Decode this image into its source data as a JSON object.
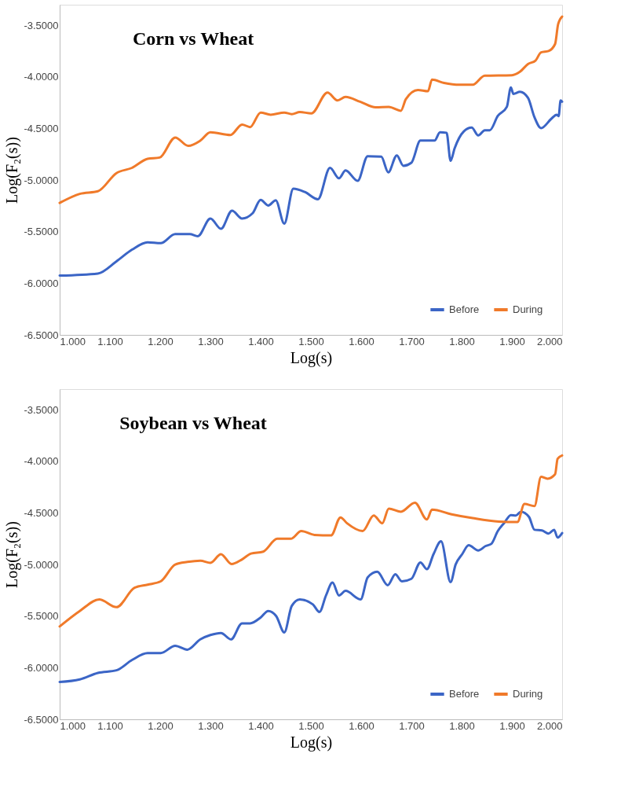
{
  "chart_data": [
    {
      "type": "line",
      "title": "Corn vs Wheat",
      "xlabel": "Log(s)",
      "ylabel": "Log(F₂(s))",
      "legend": "bottom right",
      "grid": false,
      "line_style": "solid",
      "marker": "none",
      "xlim": [
        1.0,
        2.0
      ],
      "ylim": [
        -6.5,
        -3.3
      ],
      "xticks": [
        {
          "value": 1.0,
          "label": "1.000"
        },
        {
          "value": 1.1,
          "label": "1.100"
        },
        {
          "value": 1.2,
          "label": "1.200"
        },
        {
          "value": 1.3,
          "label": "1.300"
        },
        {
          "value": 1.4,
          "label": "1.400"
        },
        {
          "value": 1.5,
          "label": "1.500"
        },
        {
          "value": 1.6,
          "label": "1.600"
        },
        {
          "value": 1.7,
          "label": "1.700"
        },
        {
          "value": 1.8,
          "label": "1.800"
        },
        {
          "value": 1.9,
          "label": "1.900"
        },
        {
          "value": 2.0,
          "label": "2.000"
        }
      ],
      "yticks": [
        {
          "value": -3.5,
          "label": "-3.5000"
        },
        {
          "value": -4.0,
          "label": "-4.0000"
        },
        {
          "value": -4.5,
          "label": "-4.5000"
        },
        {
          "value": -5.0,
          "label": "-5.0000"
        },
        {
          "value": -5.5,
          "label": "-5.5000"
        },
        {
          "value": -6.0,
          "label": "-6.0000"
        },
        {
          "value": -6.5,
          "label": "-6.5000"
        }
      ],
      "series": [
        {
          "name": "Before",
          "color": "#3b65c6",
          "x": [
            1.0,
            1.076,
            1.113,
            1.144,
            1.175,
            1.201,
            1.23,
            1.259,
            1.275,
            1.3,
            1.321,
            1.343,
            1.363,
            1.384,
            1.4,
            1.415,
            1.43,
            1.447,
            1.465,
            1.488,
            1.514,
            1.538,
            1.556,
            1.569,
            1.593,
            1.613,
            1.64,
            1.654,
            1.671,
            1.684,
            1.7,
            1.718,
            1.746,
            1.757,
            1.77,
            1.778,
            1.786,
            1.804,
            1.82,
            1.833,
            1.846,
            1.856,
            1.872,
            1.89,
            1.898,
            1.903,
            1.916,
            1.932,
            1.945,
            1.958,
            1.979,
            1.989,
            1.993,
            1.997,
            2.0
          ],
          "values": [
            -5.925,
            -5.905,
            -5.787,
            -5.674,
            -5.603,
            -5.611,
            -5.523,
            -5.523,
            -5.543,
            -5.372,
            -5.472,
            -5.296,
            -5.372,
            -5.321,
            -5.191,
            -5.246,
            -5.196,
            -5.422,
            -5.083,
            -5.115,
            -5.185,
            -4.881,
            -4.982,
            -4.906,
            -5.007,
            -4.768,
            -4.773,
            -4.924,
            -4.76,
            -4.861,
            -4.831,
            -4.617,
            -4.617,
            -4.536,
            -4.541,
            -4.813,
            -4.692,
            -4.529,
            -4.491,
            -4.567,
            -4.517,
            -4.517,
            -4.378,
            -4.29,
            -4.101,
            -4.164,
            -4.144,
            -4.202,
            -4.391,
            -4.496,
            -4.403,
            -4.366,
            -4.38,
            -4.227,
            -4.24
          ]
        },
        {
          "name": "During",
          "color": "#f07a2a",
          "x": [
            1.0,
            1.04,
            1.076,
            1.113,
            1.144,
            1.175,
            1.199,
            1.23,
            1.256,
            1.28,
            1.3,
            1.34,
            1.363,
            1.379,
            1.4,
            1.42,
            1.447,
            1.462,
            1.478,
            1.501,
            1.533,
            1.553,
            1.569,
            1.598,
            1.629,
            1.655,
            1.679,
            1.689,
            1.713,
            1.733,
            1.741,
            1.765,
            1.796,
            1.822,
            1.846,
            1.9,
            1.916,
            1.932,
            1.947,
            1.958,
            1.973,
            1.986,
            1.992,
            2.0
          ],
          "values": [
            -5.221,
            -5.133,
            -5.108,
            -4.932,
            -4.881,
            -4.793,
            -4.781,
            -4.587,
            -4.668,
            -4.617,
            -4.536,
            -4.562,
            -4.461,
            -4.486,
            -4.345,
            -4.366,
            -4.345,
            -4.36,
            -4.34,
            -4.353,
            -4.151,
            -4.227,
            -4.194,
            -4.24,
            -4.295,
            -4.29,
            -4.328,
            -4.215,
            -4.126,
            -4.139,
            -4.026,
            -4.058,
            -4.076,
            -4.076,
            -3.988,
            -3.983,
            -3.95,
            -3.875,
            -3.842,
            -3.762,
            -3.749,
            -3.681,
            -3.49,
            -3.415
          ]
        }
      ]
    },
    {
      "type": "line",
      "title": "Soybean vs Wheat",
      "xlabel": "Log(s)",
      "ylabel": "Log(F₂(s))",
      "legend": "bottom right",
      "grid": false,
      "line_style": "solid",
      "marker": "none",
      "xlim": [
        1.0,
        2.0
      ],
      "ylim": [
        -6.5,
        -3.3
      ],
      "xticks": [
        {
          "value": 1.0,
          "label": "1.000"
        },
        {
          "value": 1.1,
          "label": "1.100"
        },
        {
          "value": 1.2,
          "label": "1.200"
        },
        {
          "value": 1.3,
          "label": "1.300"
        },
        {
          "value": 1.4,
          "label": "1.400"
        },
        {
          "value": 1.5,
          "label": "1.500"
        },
        {
          "value": 1.6,
          "label": "1.600"
        },
        {
          "value": 1.7,
          "label": "1.700"
        },
        {
          "value": 1.8,
          "label": "1.800"
        },
        {
          "value": 1.9,
          "label": "1.900"
        },
        {
          "value": 2.0,
          "label": "2.000"
        }
      ],
      "yticks": [
        {
          "value": -3.5,
          "label": "-3.5000"
        },
        {
          "value": -4.0,
          "label": "-4.0000"
        },
        {
          "value": -4.5,
          "label": "-4.5000"
        },
        {
          "value": -5.0,
          "label": "-5.0000"
        },
        {
          "value": -5.5,
          "label": "-5.5000"
        },
        {
          "value": -6.0,
          "label": "-6.0000"
        },
        {
          "value": -6.5,
          "label": "-6.5000"
        }
      ],
      "series": [
        {
          "name": "Before",
          "color": "#3b65c6",
          "x": [
            1.0,
            1.04,
            1.076,
            1.113,
            1.144,
            1.175,
            1.201,
            1.23,
            1.254,
            1.28,
            1.3,
            1.321,
            1.341,
            1.363,
            1.379,
            1.4,
            1.415,
            1.431,
            1.447,
            1.462,
            1.478,
            1.504,
            1.517,
            1.53,
            1.543,
            1.556,
            1.569,
            1.599,
            1.613,
            1.632,
            1.653,
            1.668,
            1.681,
            1.7,
            1.718,
            1.731,
            1.744,
            1.759,
            1.778,
            1.788,
            1.801,
            1.814,
            1.833,
            1.848,
            1.859,
            1.872,
            1.885,
            1.898,
            1.908,
            1.918,
            1.934,
            1.945,
            1.96,
            1.973,
            1.984,
            1.991,
            2.0
          ],
          "values": [
            -6.138,
            -6.113,
            -6.05,
            -6.025,
            -5.925,
            -5.858,
            -5.858,
            -5.788,
            -5.825,
            -5.725,
            -5.683,
            -5.663,
            -5.725,
            -5.57,
            -5.57,
            -5.513,
            -5.45,
            -5.5,
            -5.658,
            -5.4,
            -5.338,
            -5.387,
            -5.46,
            -5.3,
            -5.175,
            -5.3,
            -5.255,
            -5.338,
            -5.125,
            -5.07,
            -5.2,
            -5.095,
            -5.163,
            -5.138,
            -4.98,
            -5.045,
            -4.9,
            -4.775,
            -5.17,
            -5.0,
            -4.9,
            -4.813,
            -4.863,
            -4.82,
            -4.8,
            -4.675,
            -4.595,
            -4.52,
            -4.525,
            -4.488,
            -4.538,
            -4.663,
            -4.67,
            -4.7,
            -4.663,
            -4.738,
            -4.695
          ]
        },
        {
          "name": "During",
          "color": "#f07a2a",
          "x": [
            1.0,
            1.04,
            1.079,
            1.113,
            1.149,
            1.175,
            1.201,
            1.23,
            1.254,
            1.28,
            1.3,
            1.321,
            1.342,
            1.363,
            1.381,
            1.405,
            1.433,
            1.46,
            1.481,
            1.507,
            1.54,
            1.559,
            1.572,
            1.603,
            1.625,
            1.642,
            1.655,
            1.679,
            1.707,
            1.731,
            1.741,
            1.78,
            1.822,
            1.874,
            1.911,
            1.925,
            1.945,
            1.958,
            1.971,
            1.986,
            1.991,
            2.0
          ],
          "values": [
            -5.6,
            -5.45,
            -5.338,
            -5.413,
            -5.225,
            -5.195,
            -5.163,
            -5.0,
            -4.975,
            -4.963,
            -4.983,
            -4.9,
            -4.995,
            -4.95,
            -4.893,
            -4.875,
            -4.75,
            -4.75,
            -4.675,
            -4.713,
            -4.718,
            -4.543,
            -4.6,
            -4.675,
            -4.525,
            -4.6,
            -4.458,
            -4.488,
            -4.4,
            -4.563,
            -4.468,
            -4.513,
            -4.55,
            -4.583,
            -4.588,
            -4.413,
            -4.433,
            -4.15,
            -4.168,
            -4.125,
            -3.975,
            -3.943
          ]
        }
      ]
    }
  ]
}
